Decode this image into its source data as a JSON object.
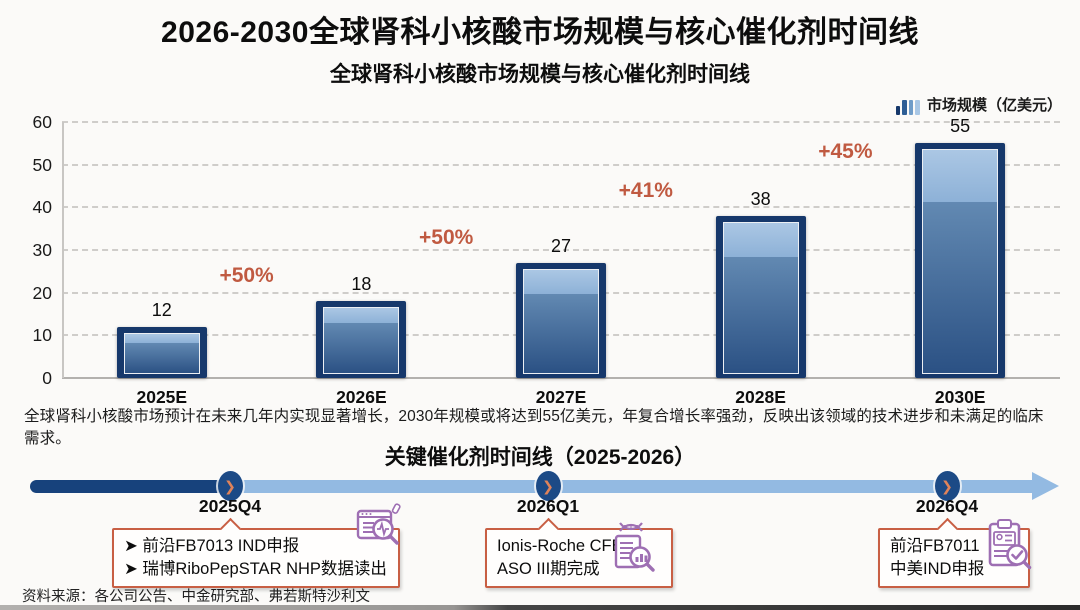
{
  "page": {
    "title": "2026-2030全球肾科小核酸市场规模与核心催化剂时间线",
    "source": "资料来源：各公司公告、中金研究部、弗若斯特沙利文"
  },
  "chart": {
    "subtitle": "全球肾科小核酸市场规模与核心催化剂时间线",
    "legend_label": "市场规模（亿美元）",
    "description": "全球肾科小核酸市场预计在未来几年内实现显著增长，2030年规模或将达到55亿美元，年复合增长率强劲，反映出该领域的技术进步和未满足的临床需求。"
  },
  "chart_data": {
    "type": "bar",
    "title": "全球肾科小核酸市场规模与核心催化剂时间线",
    "categories": [
      "2025E",
      "2026E",
      "2027E",
      "2028E",
      "2030E"
    ],
    "values": [
      12,
      18,
      27,
      38,
      55
    ],
    "data_labels": [
      "12",
      "18",
      "27",
      "38",
      "55"
    ],
    "growth_labels": [
      "+50%",
      "+50%",
      "+41%",
      "+45%"
    ],
    "ylabel": "市场规模（亿美元）",
    "ylim": [
      0,
      60
    ],
    "yticks": [
      0,
      10,
      20,
      30,
      40,
      50,
      60
    ],
    "grid": "dashed-horizontal",
    "legend_position": "top-right"
  },
  "timeline": {
    "title": "关键催化剂时间线（2025-2026）",
    "milestones": [
      {
        "date": "2025Q4",
        "bullet_char": "➤",
        "items": [
          "前沿FB7013 IND申报",
          "瑞博RiboPepSTAR NHP数据读出"
        ],
        "icon": "report-magnifier-icon"
      },
      {
        "date": "2026Q1",
        "bullet_char": "",
        "items": [
          "Ionis-Roche CFB",
          "ASO III期完成"
        ],
        "icon": "dna-report-icon"
      },
      {
        "date": "2026Q4",
        "bullet_char": "",
        "items": [
          "前沿FB7011",
          "中美IND申报"
        ],
        "icon": "clipboard-check-icon"
      }
    ]
  },
  "colors": {
    "accent_orange": "#c05a41",
    "callout_border": "#c85f44",
    "bar_frame": "#16386b",
    "bar_cap_light": "#8db1d7",
    "bar_gradient_top": "#6289b2",
    "bar_gradient_bottom": "#2b5184",
    "timeline_dark": "#17427c",
    "timeline_light": "#93bae2",
    "icon_purple": "#9e6fb3",
    "background": "#fbfaf8"
  }
}
